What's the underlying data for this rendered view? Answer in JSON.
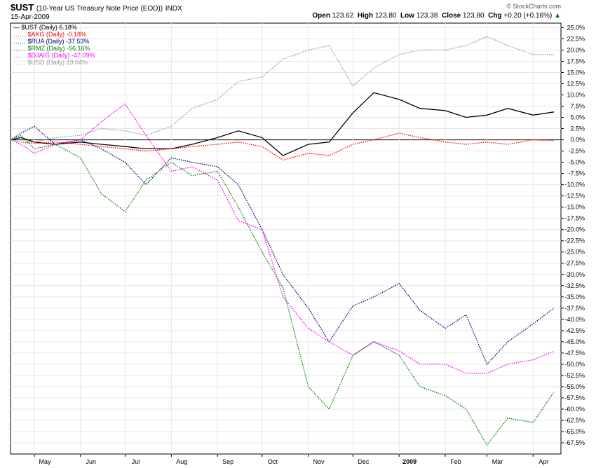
{
  "header": {
    "symbol": "$UST",
    "description": "(10-Year US Treasury Note Price (EOD))",
    "exchange": "INDX",
    "date": "15-Apr-2009",
    "open_label": "Open",
    "open": "123.62",
    "high_label": "High",
    "high": "123.80",
    "low_label": "Low",
    "low": "123.38",
    "close_label": "Close",
    "close": "123.80",
    "chg_label": "Chg",
    "chg": "+0.20 (+0.16%)",
    "brand": "© StockCharts.com"
  },
  "chart_data": {
    "type": "line",
    "x": [
      "2008-04-15",
      "2008-04-22",
      "2008-05-01",
      "2008-05-15",
      "2008-06-01",
      "2008-06-15",
      "2008-07-01",
      "2008-07-15",
      "2008-08-01",
      "2008-08-15",
      "2008-09-01",
      "2008-09-15",
      "2008-10-01",
      "2008-10-15",
      "2008-11-01",
      "2008-11-15",
      "2008-12-01",
      "2008-12-15",
      "2009-01-01",
      "2009-01-15",
      "2009-02-01",
      "2009-02-15",
      "2009-03-01",
      "2009-03-15",
      "2009-04-01",
      "2009-04-15"
    ],
    "series": [
      {
        "name": "$UST (Daily) 6.18%",
        "color": "#000000",
        "dash": "solid",
        "values": [
          0.0,
          0.5,
          -0.5,
          -1.0,
          -0.5,
          -1.0,
          -1.5,
          -2.0,
          -2.0,
          -1.0,
          0.5,
          2.0,
          0.5,
          -3.5,
          -1.0,
          -0.5,
          6.0,
          10.5,
          9.0,
          7.0,
          6.5,
          5.0,
          5.5,
          7.0,
          5.5,
          6.2
        ]
      },
      {
        "name": "$AKG (Daily) -0.18%",
        "color": "#ff0000",
        "dash": "dotted",
        "values": [
          0.0,
          -0.5,
          -0.8,
          -0.5,
          -1.0,
          -1.5,
          -2.0,
          -2.5,
          -2.0,
          -1.5,
          -1.0,
          -0.5,
          -1.5,
          -4.5,
          -3.0,
          -3.5,
          -1.0,
          0.0,
          1.5,
          0.5,
          -0.5,
          -1.0,
          -0.5,
          -1.0,
          0.0,
          -0.2
        ]
      },
      {
        "name": "$RUA (Daily) -37.53%",
        "color": "#000080",
        "dash": "dotted",
        "values": [
          0.0,
          1.5,
          3.0,
          -1.0,
          0.0,
          -2.0,
          -5.0,
          -10.0,
          -4.0,
          -5.0,
          -6.0,
          -10.0,
          -20.0,
          -30.0,
          -37.5,
          -45.0,
          -37.0,
          -35.0,
          -32.0,
          -38.0,
          -42.0,
          -39.0,
          -50.0,
          -45.0,
          -41.0,
          -37.5
        ]
      },
      {
        "name": "$RMZ (Daily) -56.16%",
        "color": "#008000",
        "dash": "dotted",
        "values": [
          0.0,
          1.0,
          -2.0,
          -1.0,
          -4.0,
          -12.0,
          -16.0,
          -9.0,
          -5.0,
          -8.0,
          -7.0,
          -15.0,
          -25.0,
          -33.0,
          -55.0,
          -60.0,
          -48.0,
          -45.0,
          -48.0,
          -55.0,
          -57.0,
          -60.0,
          -68.0,
          -62.0,
          -63.0,
          -56.2
        ]
      },
      {
        "name": "$DJAIG (Daily) -47.09%",
        "color": "#ff00ff",
        "dash": "dotted",
        "values": [
          0.0,
          -1.0,
          -3.0,
          -1.0,
          0.0,
          4.0,
          8.0,
          1.0,
          -7.0,
          -6.0,
          -9.0,
          -18.0,
          -20.0,
          -35.0,
          -42.0,
          -45.0,
          -48.0,
          -45.0,
          -47.0,
          -50.0,
          -50.0,
          -52.0,
          -52.0,
          -50.0,
          -49.0,
          -47.1
        ]
      },
      {
        "name": "$USD (Daily) 19.04%",
        "color": "#999999",
        "dash": "dotted",
        "values": [
          0.0,
          -0.5,
          -0.5,
          0.5,
          1.0,
          2.5,
          2.0,
          1.0,
          3.0,
          7.0,
          9.0,
          13.0,
          14.0,
          18.0,
          20.0,
          21.0,
          12.0,
          16.0,
          19.0,
          20.0,
          20.0,
          21.0,
          23.0,
          21.0,
          19.0,
          19.0
        ]
      }
    ],
    "ylim": [
      -70.0,
      26.0
    ],
    "y_ticks": [
      25.0,
      22.5,
      20.0,
      17.5,
      15.0,
      12.5,
      10.0,
      7.5,
      5.0,
      2.5,
      0.0,
      -2.5,
      -5.0,
      -7.5,
      -10.0,
      -12.5,
      -15.0,
      -17.5,
      -20.0,
      -22.5,
      -25.0,
      -27.5,
      -30.0,
      -32.5,
      -35.0,
      -37.5,
      -40.0,
      -42.5,
      -45.0,
      -47.5,
      -50.0,
      -52.5,
      -55.0,
      -57.5,
      -60.0,
      -62.5,
      -65.0,
      -67.5
    ],
    "y_tick_labels": [
      "25.0%",
      "22.5%",
      "20.0%",
      "17.5%",
      "15.0%",
      "12.5%",
      "10.0%",
      "7.5%",
      "5.0%",
      "2.5%",
      "0.0%",
      "-2.5%",
      "-5.0%",
      "-7.5%",
      "-10.0%",
      "-12.5%",
      "-15.0%",
      "-17.5%",
      "-20.0%",
      "-22.5%",
      "-25.0%",
      "-27.5%",
      "-30.0%",
      "-32.5%",
      "-35.0%",
      "-37.5%",
      "-40.0%",
      "-42.5%",
      "-45.0%",
      "-47.5%",
      "-50.0%",
      "-52.5%",
      "-55.0%",
      "-57.5%",
      "-60.0%",
      "-62.5%",
      "-65.0%",
      "-67.5%"
    ],
    "x_ticks": [
      {
        "date": "2008-05-01",
        "label": "May",
        "bold": false
      },
      {
        "date": "2008-06-01",
        "label": "Jun",
        "bold": false
      },
      {
        "date": "2008-07-01",
        "label": "Jul",
        "bold": false
      },
      {
        "date": "2008-08-01",
        "label": "Aug",
        "bold": false
      },
      {
        "date": "2008-09-01",
        "label": "Sep",
        "bold": false
      },
      {
        "date": "2008-10-01",
        "label": "Oct",
        "bold": false
      },
      {
        "date": "2008-11-01",
        "label": "Nov",
        "bold": false
      },
      {
        "date": "2008-12-01",
        "label": "Dec",
        "bold": false
      },
      {
        "date": "2009-01-01",
        "label": "2009",
        "bold": true
      },
      {
        "date": "2009-02-01",
        "label": "Feb",
        "bold": false
      },
      {
        "date": "2009-03-01",
        "label": "Mar",
        "bold": false
      },
      {
        "date": "2009-04-01",
        "label": "Apr",
        "bold": false
      }
    ],
    "grid": true,
    "zero_line": true,
    "legend_position": "top-left"
  }
}
